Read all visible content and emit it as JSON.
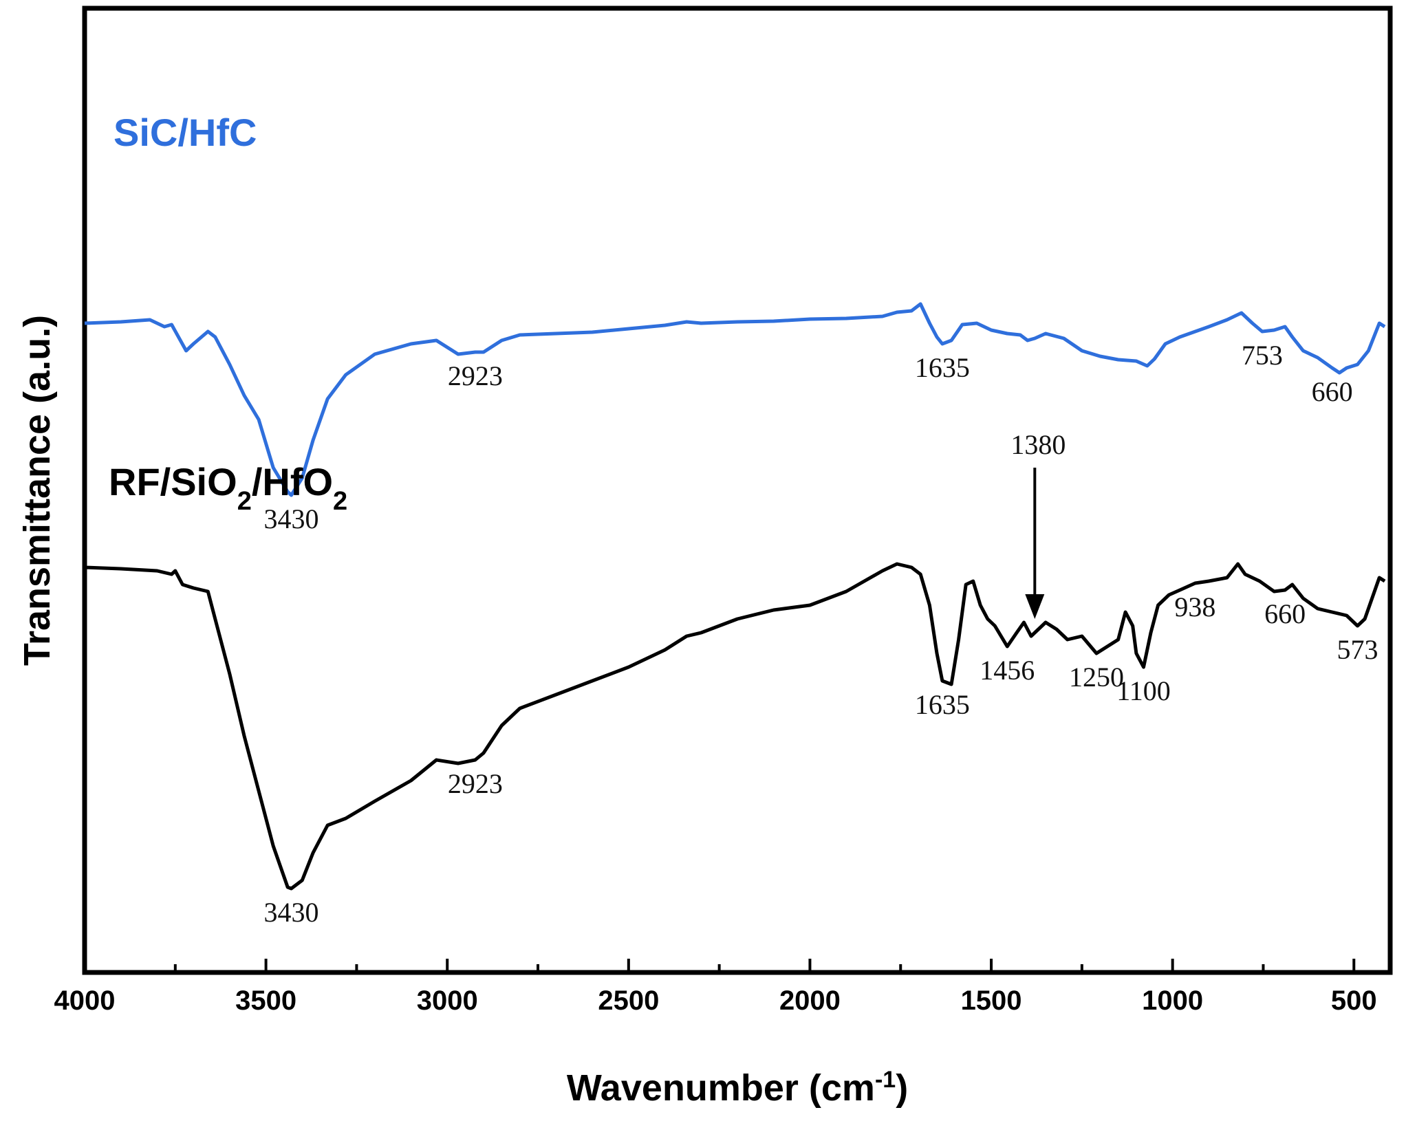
{
  "chart_data": {
    "type": "line",
    "xlabel": {
      "main": "Wavenumber (cm",
      "sup": "-1",
      "end": ")"
    },
    "ylabel": "Transmittance (a.u.)",
    "xlim": [
      4000,
      400
    ],
    "x_reversed": true,
    "xticks": [
      4000,
      3500,
      3000,
      2500,
      2000,
      1500,
      1000,
      500
    ],
    "grid": false,
    "colors": {
      "sic_hfc": "#2f6fdc",
      "rf": "#000000"
    },
    "series": [
      {
        "name": "SiC/HfC",
        "label_parts": [
          {
            "t": "SiC/HfC",
            "sub": false
          }
        ],
        "color": "#2f6fdc",
        "points": [
          [
            4000,
            9.6
          ],
          [
            3900,
            9.62
          ],
          [
            3820,
            9.65
          ],
          [
            3780,
            9.55
          ],
          [
            3760,
            9.58
          ],
          [
            3720,
            9.2
          ],
          [
            3700,
            9.3
          ],
          [
            3660,
            9.48
          ],
          [
            3640,
            9.4
          ],
          [
            3600,
            9.0
          ],
          [
            3560,
            8.55
          ],
          [
            3520,
            8.2
          ],
          [
            3480,
            7.5
          ],
          [
            3440,
            7.15
          ],
          [
            3430,
            7.1
          ],
          [
            3400,
            7.35
          ],
          [
            3370,
            7.9
          ],
          [
            3330,
            8.5
          ],
          [
            3280,
            8.85
          ],
          [
            3200,
            9.15
          ],
          [
            3100,
            9.3
          ],
          [
            3030,
            9.35
          ],
          [
            2970,
            9.15
          ],
          [
            2923,
            9.18
          ],
          [
            2900,
            9.18
          ],
          [
            2850,
            9.35
          ],
          [
            2800,
            9.43
          ],
          [
            2700,
            9.45
          ],
          [
            2600,
            9.47
          ],
          [
            2500,
            9.52
          ],
          [
            2400,
            9.57
          ],
          [
            2340,
            9.62
          ],
          [
            2300,
            9.6
          ],
          [
            2200,
            9.62
          ],
          [
            2100,
            9.63
          ],
          [
            2000,
            9.66
          ],
          [
            1900,
            9.67
          ],
          [
            1800,
            9.7
          ],
          [
            1760,
            9.76
          ],
          [
            1720,
            9.78
          ],
          [
            1695,
            9.88
          ],
          [
            1670,
            9.6
          ],
          [
            1650,
            9.4
          ],
          [
            1635,
            9.3
          ],
          [
            1610,
            9.35
          ],
          [
            1580,
            9.58
          ],
          [
            1540,
            9.6
          ],
          [
            1500,
            9.5
          ],
          [
            1456,
            9.45
          ],
          [
            1420,
            9.43
          ],
          [
            1400,
            9.35
          ],
          [
            1380,
            9.38
          ],
          [
            1350,
            9.45
          ],
          [
            1300,
            9.38
          ],
          [
            1250,
            9.2
          ],
          [
            1200,
            9.12
          ],
          [
            1150,
            9.07
          ],
          [
            1100,
            9.05
          ],
          [
            1070,
            8.98
          ],
          [
            1050,
            9.08
          ],
          [
            1020,
            9.3
          ],
          [
            980,
            9.4
          ],
          [
            900,
            9.55
          ],
          [
            850,
            9.65
          ],
          [
            810,
            9.75
          ],
          [
            780,
            9.6
          ],
          [
            753,
            9.48
          ],
          [
            720,
            9.5
          ],
          [
            690,
            9.55
          ],
          [
            670,
            9.4
          ],
          [
            640,
            9.2
          ],
          [
            600,
            9.1
          ],
          [
            560,
            8.95
          ],
          [
            540,
            8.88
          ],
          [
            520,
            8.95
          ],
          [
            490,
            9.0
          ],
          [
            460,
            9.2
          ],
          [
            430,
            9.6
          ],
          [
            415,
            9.55
          ]
        ]
      },
      {
        "name": "RF/SiO2/HfO2",
        "label_parts": [
          {
            "t": "RF/SiO",
            "sub": false
          },
          {
            "t": "2",
            "sub": true
          },
          {
            "t": "/HfO",
            "sub": false
          },
          {
            "t": "2",
            "sub": true
          }
        ],
        "color": "#000000",
        "points": [
          [
            4000,
            6.05
          ],
          [
            3900,
            6.03
          ],
          [
            3800,
            6.0
          ],
          [
            3760,
            5.95
          ],
          [
            3750,
            6.0
          ],
          [
            3730,
            5.8
          ],
          [
            3700,
            5.75
          ],
          [
            3660,
            5.7
          ],
          [
            3640,
            5.3
          ],
          [
            3600,
            4.5
          ],
          [
            3560,
            3.6
          ],
          [
            3520,
            2.8
          ],
          [
            3480,
            2.0
          ],
          [
            3440,
            1.4
          ],
          [
            3430,
            1.38
          ],
          [
            3400,
            1.5
          ],
          [
            3370,
            1.9
          ],
          [
            3330,
            2.3
          ],
          [
            3280,
            2.4
          ],
          [
            3200,
            2.65
          ],
          [
            3100,
            2.95
          ],
          [
            3030,
            3.25
          ],
          [
            2970,
            3.2
          ],
          [
            2923,
            3.25
          ],
          [
            2900,
            3.35
          ],
          [
            2850,
            3.75
          ],
          [
            2800,
            4.0
          ],
          [
            2700,
            4.2
          ],
          [
            2600,
            4.4
          ],
          [
            2500,
            4.6
          ],
          [
            2400,
            4.85
          ],
          [
            2340,
            5.05
          ],
          [
            2300,
            5.1
          ],
          [
            2200,
            5.3
          ],
          [
            2100,
            5.43
          ],
          [
            2000,
            5.5
          ],
          [
            1900,
            5.7
          ],
          [
            1800,
            6.0
          ],
          [
            1760,
            6.1
          ],
          [
            1720,
            6.05
          ],
          [
            1695,
            5.95
          ],
          [
            1670,
            5.5
          ],
          [
            1650,
            4.8
          ],
          [
            1635,
            4.4
          ],
          [
            1610,
            4.35
          ],
          [
            1590,
            5.0
          ],
          [
            1570,
            5.8
          ],
          [
            1550,
            5.85
          ],
          [
            1530,
            5.5
          ],
          [
            1510,
            5.3
          ],
          [
            1490,
            5.2
          ],
          [
            1456,
            4.9
          ],
          [
            1430,
            5.1
          ],
          [
            1410,
            5.25
          ],
          [
            1390,
            5.05
          ],
          [
            1380,
            5.1
          ],
          [
            1350,
            5.25
          ],
          [
            1320,
            5.15
          ],
          [
            1290,
            5.0
          ],
          [
            1250,
            5.05
          ],
          [
            1210,
            4.8
          ],
          [
            1180,
            4.9
          ],
          [
            1150,
            5.0
          ],
          [
            1130,
            5.4
          ],
          [
            1110,
            5.2
          ],
          [
            1100,
            4.8
          ],
          [
            1080,
            4.6
          ],
          [
            1060,
            5.1
          ],
          [
            1040,
            5.5
          ],
          [
            1010,
            5.65
          ],
          [
            980,
            5.72
          ],
          [
            938,
            5.82
          ],
          [
            900,
            5.85
          ],
          [
            850,
            5.9
          ],
          [
            820,
            6.1
          ],
          [
            800,
            5.95
          ],
          [
            760,
            5.85
          ],
          [
            720,
            5.7
          ],
          [
            690,
            5.72
          ],
          [
            670,
            5.8
          ],
          [
            640,
            5.6
          ],
          [
            600,
            5.45
          ],
          [
            560,
            5.4
          ],
          [
            520,
            5.35
          ],
          [
            490,
            5.2
          ],
          [
            470,
            5.3
          ],
          [
            430,
            5.9
          ],
          [
            415,
            5.85
          ]
        ]
      }
    ],
    "annotations": [
      {
        "text": "3430",
        "series": 0,
        "x": 3430,
        "pos": "below"
      },
      {
        "text": "2923",
        "series": 0,
        "x": 2923,
        "pos": "below"
      },
      {
        "text": "1635",
        "series": 0,
        "x": 1635,
        "pos": "below"
      },
      {
        "text": "753",
        "series": 0,
        "x": 753,
        "pos": "below"
      },
      {
        "text": "660",
        "series": 0,
        "x": 560,
        "pos": "below"
      },
      {
        "text": "3430",
        "series": 1,
        "x": 3430,
        "pos": "below"
      },
      {
        "text": "2923",
        "series": 1,
        "x": 2923,
        "pos": "below"
      },
      {
        "text": "1635",
        "series": 1,
        "x": 1635,
        "pos": "below"
      },
      {
        "text": "1456",
        "series": 1,
        "x": 1456,
        "pos": "below"
      },
      {
        "text": "1250",
        "series": 1,
        "x": 1210,
        "pos": "below"
      },
      {
        "text": "1100",
        "series": 1,
        "x": 1080,
        "pos": "below"
      },
      {
        "text": "938",
        "series": 1,
        "x": 938,
        "pos": "below"
      },
      {
        "text": "660",
        "series": 1,
        "x": 690,
        "pos": "below"
      },
      {
        "text": "573",
        "series": 1,
        "x": 490,
        "pos": "below"
      },
      {
        "text": "1380",
        "series": 1,
        "x": 1380,
        "pos": "arrow"
      }
    ]
  }
}
